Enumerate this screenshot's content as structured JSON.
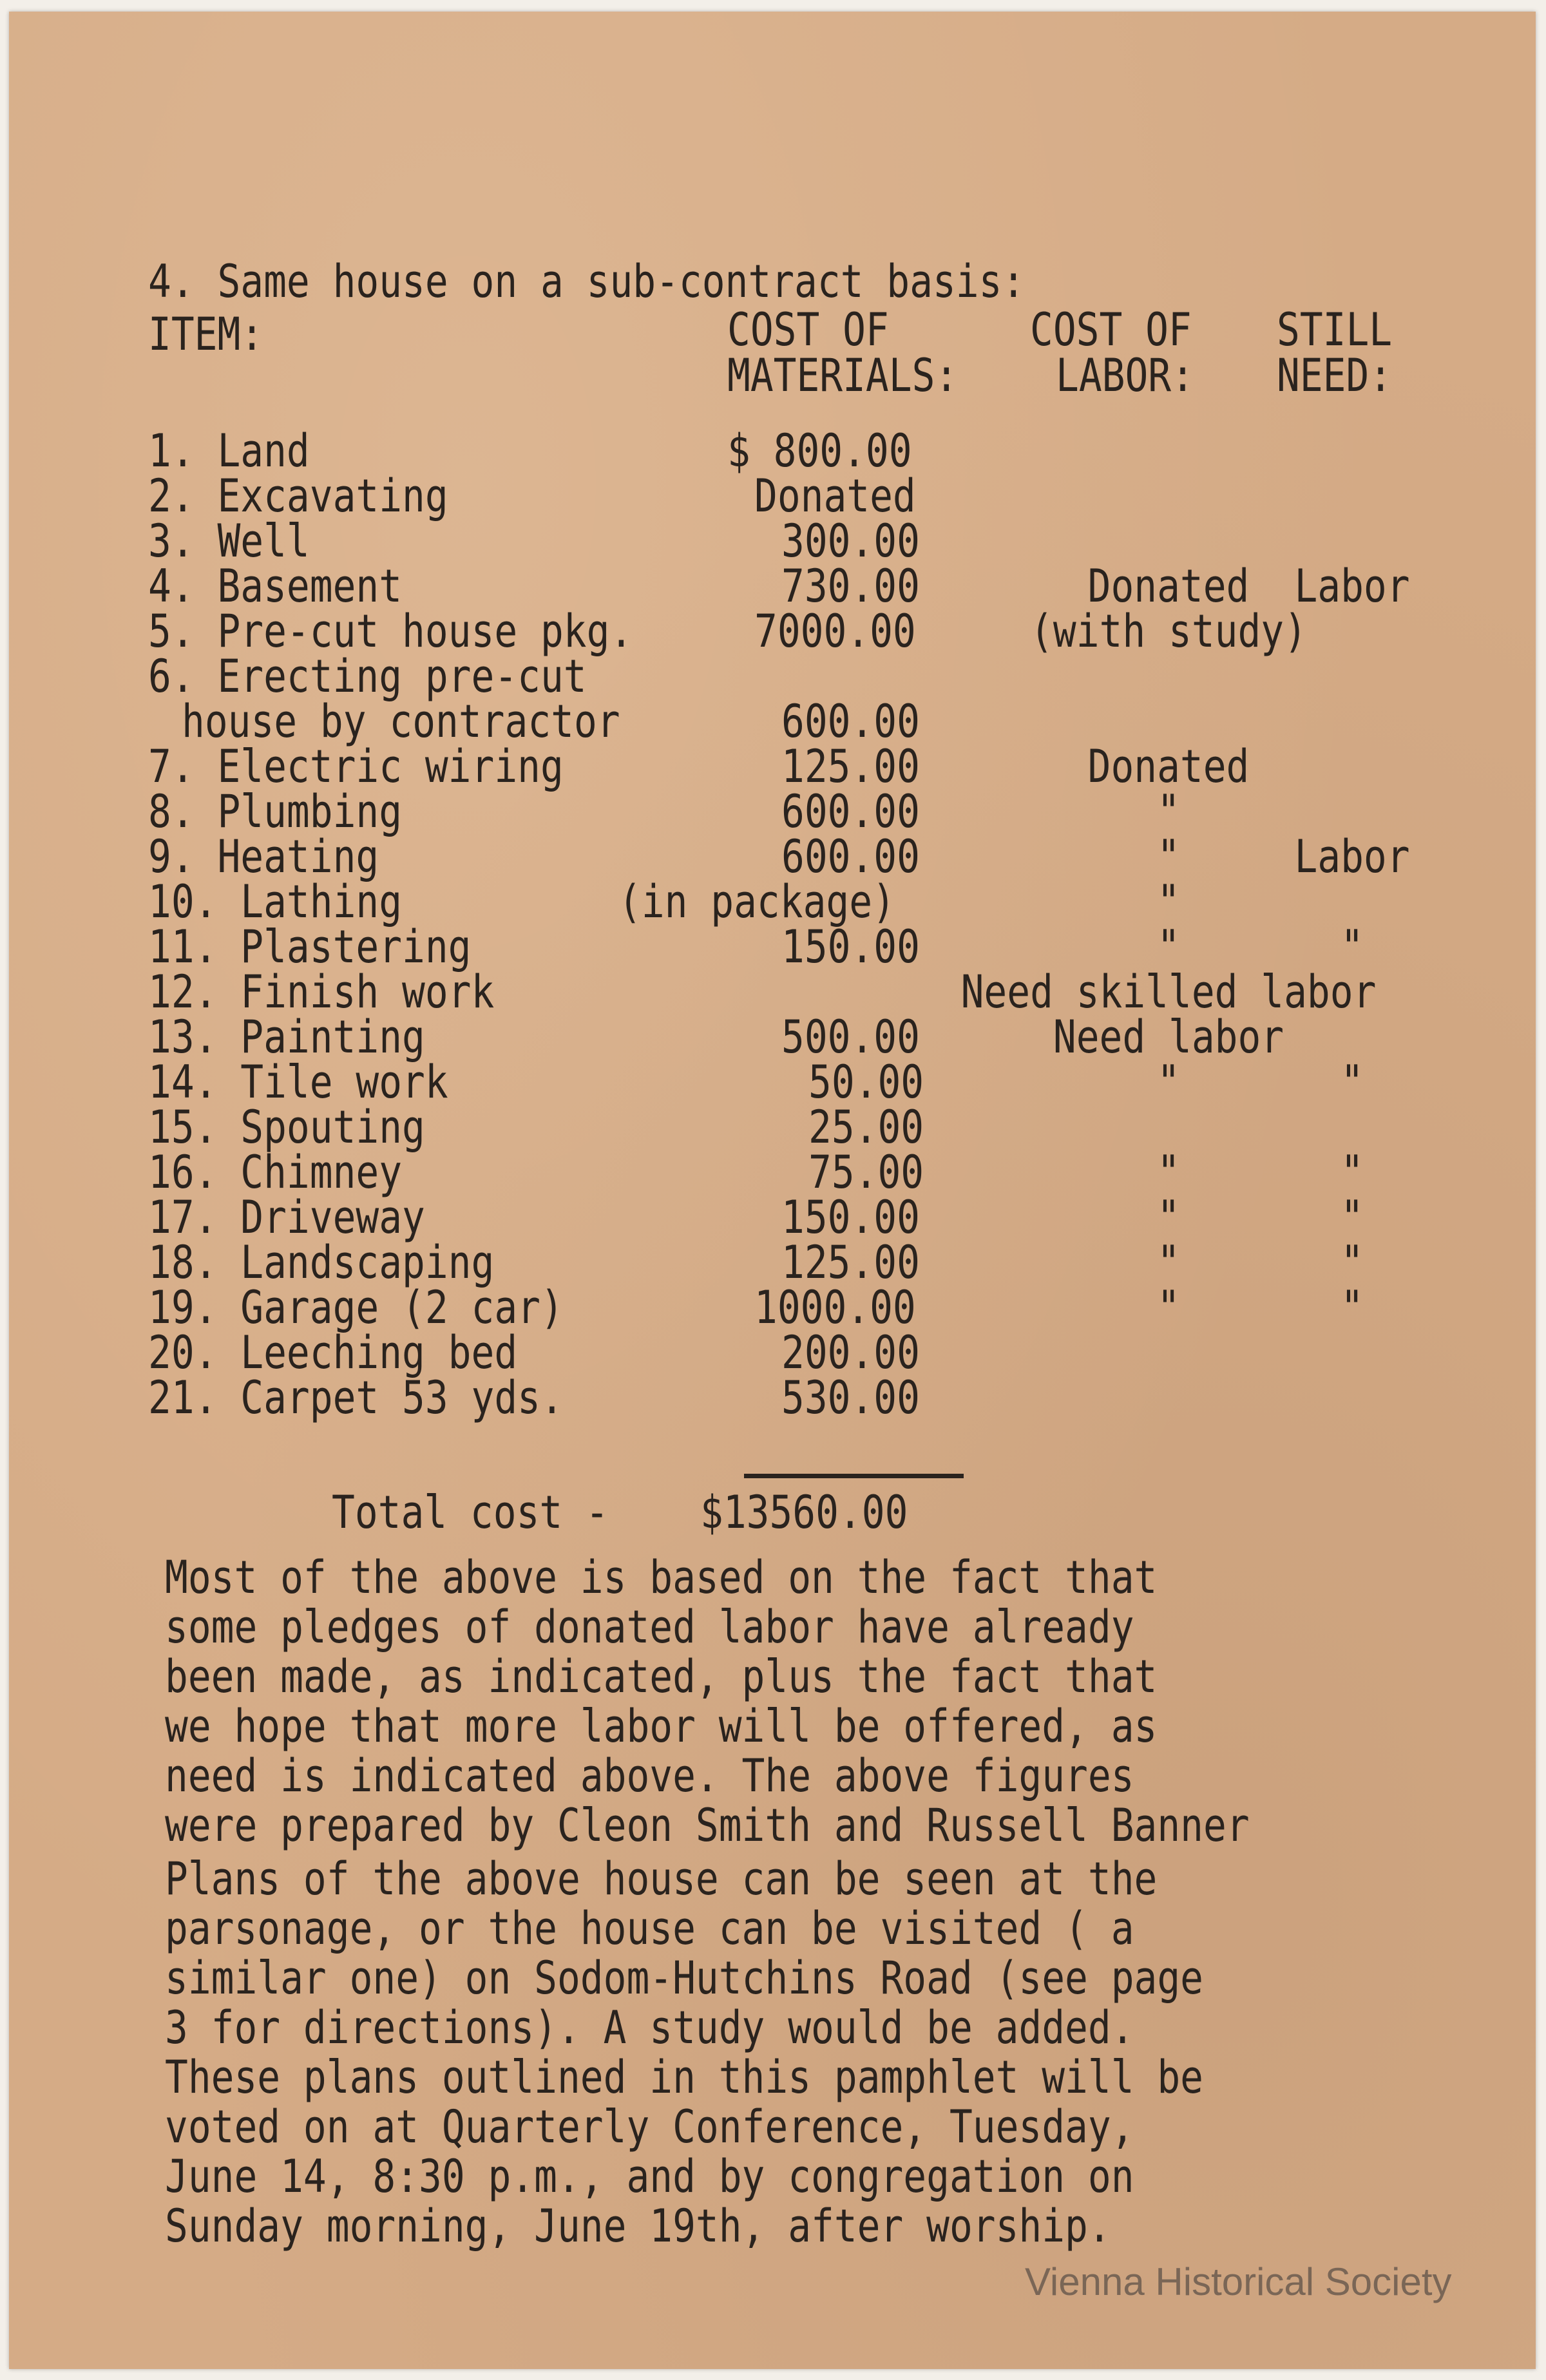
{
  "heading": "4. Same house on a sub-contract basis:",
  "columns": {
    "item": "ITEM:",
    "materials_1": "COST OF",
    "materials_2": "MATERIALS:",
    "labor_1": "COST OF",
    "labor_2": "LABOR:",
    "need_1": "STILL",
    "need_2": "NEED:"
  },
  "rows": [
    {
      "item": "1. Land",
      "materials": "$ 800.00",
      "labor": "",
      "need": ""
    },
    {
      "item": "2. Excavating",
      "materials": "Donated",
      "labor": "",
      "need": ""
    },
    {
      "item": "3. Well",
      "materials": "300.00",
      "labor": "",
      "need": ""
    },
    {
      "item": "4. Basement",
      "materials": "730.00",
      "labor": "Donated",
      "need": "Labor"
    },
    {
      "item": "5. Pre-cut house pkg.",
      "materials": "7000.00",
      "labor": "(with study)",
      "need": ""
    },
    {
      "item": "6. Erecting pre-cut",
      "item_cont": "house by contractor",
      "materials": "600.00",
      "labor": "",
      "need": ""
    },
    {
      "item": "7. Electric wiring",
      "materials": "125.00",
      "labor": "Donated",
      "need": ""
    },
    {
      "item": "8. Plumbing",
      "materials": "600.00",
      "labor": "\"",
      "need": ""
    },
    {
      "item": "9. Heating",
      "materials": "600.00",
      "labor": "\"",
      "need": "Labor"
    },
    {
      "item": "10. Lathing",
      "materials": "(in package)",
      "labor": "\"",
      "need": ""
    },
    {
      "item": "11. Plastering",
      "materials": "150.00",
      "labor": "\"",
      "need": "\""
    },
    {
      "item": "12. Finish work",
      "materials": "",
      "labor": "Need skilled labor",
      "need": ""
    },
    {
      "item": "13. Painting",
      "materials": "500.00",
      "labor": "Need labor",
      "need": ""
    },
    {
      "item": "14. Tile work",
      "materials": "50.00",
      "labor": "\"",
      "need": "\""
    },
    {
      "item": "15. Spouting",
      "materials": "25.00",
      "labor": "",
      "need": ""
    },
    {
      "item": "16. Chimney",
      "materials": "75.00",
      "labor": "\"",
      "need": "\""
    },
    {
      "item": "17. Driveway",
      "materials": "150.00",
      "labor": "\"",
      "need": "\""
    },
    {
      "item": "18. Landscaping",
      "materials": "125.00",
      "labor": "\"",
      "need": "\""
    },
    {
      "item": "19. Garage (2 car)",
      "materials": "1000.00",
      "labor": "\"",
      "need": "\""
    },
    {
      "item": "20. Leeching bed",
      "materials": "200.00",
      "labor": "",
      "need": ""
    },
    {
      "item": "21. Carpet 53 yds.",
      "materials": "530.00",
      "labor": "",
      "need": ""
    }
  ],
  "total": {
    "label": "Total cost -",
    "value": "$13560.00"
  },
  "paragraph_1": [
    "Most of the above is based on the fact that",
    "some pledges of donated labor have already",
    "been made, as indicated, plus the fact that",
    "we hope that more labor will be offered, as",
    "need is indicated above. The above figures",
    "were prepared by Cleon Smith and Russell Banner"
  ],
  "paragraph_2": [
    "Plans of the above house can be seen at the",
    "parsonage, or the house can be visited ( a",
    "similar one) on Sodom-Hutchins Road (see page",
    "3 for directions). A study would be added.",
    "These plans outlined in this pamphlet will be",
    "voted on at Quarterly Conference, Tuesday,",
    "June 14, 8:30 p.m., and by congregation on",
    "Sunday morning, June 19th, after worship."
  ],
  "watermark": "Vienna Historical Society"
}
